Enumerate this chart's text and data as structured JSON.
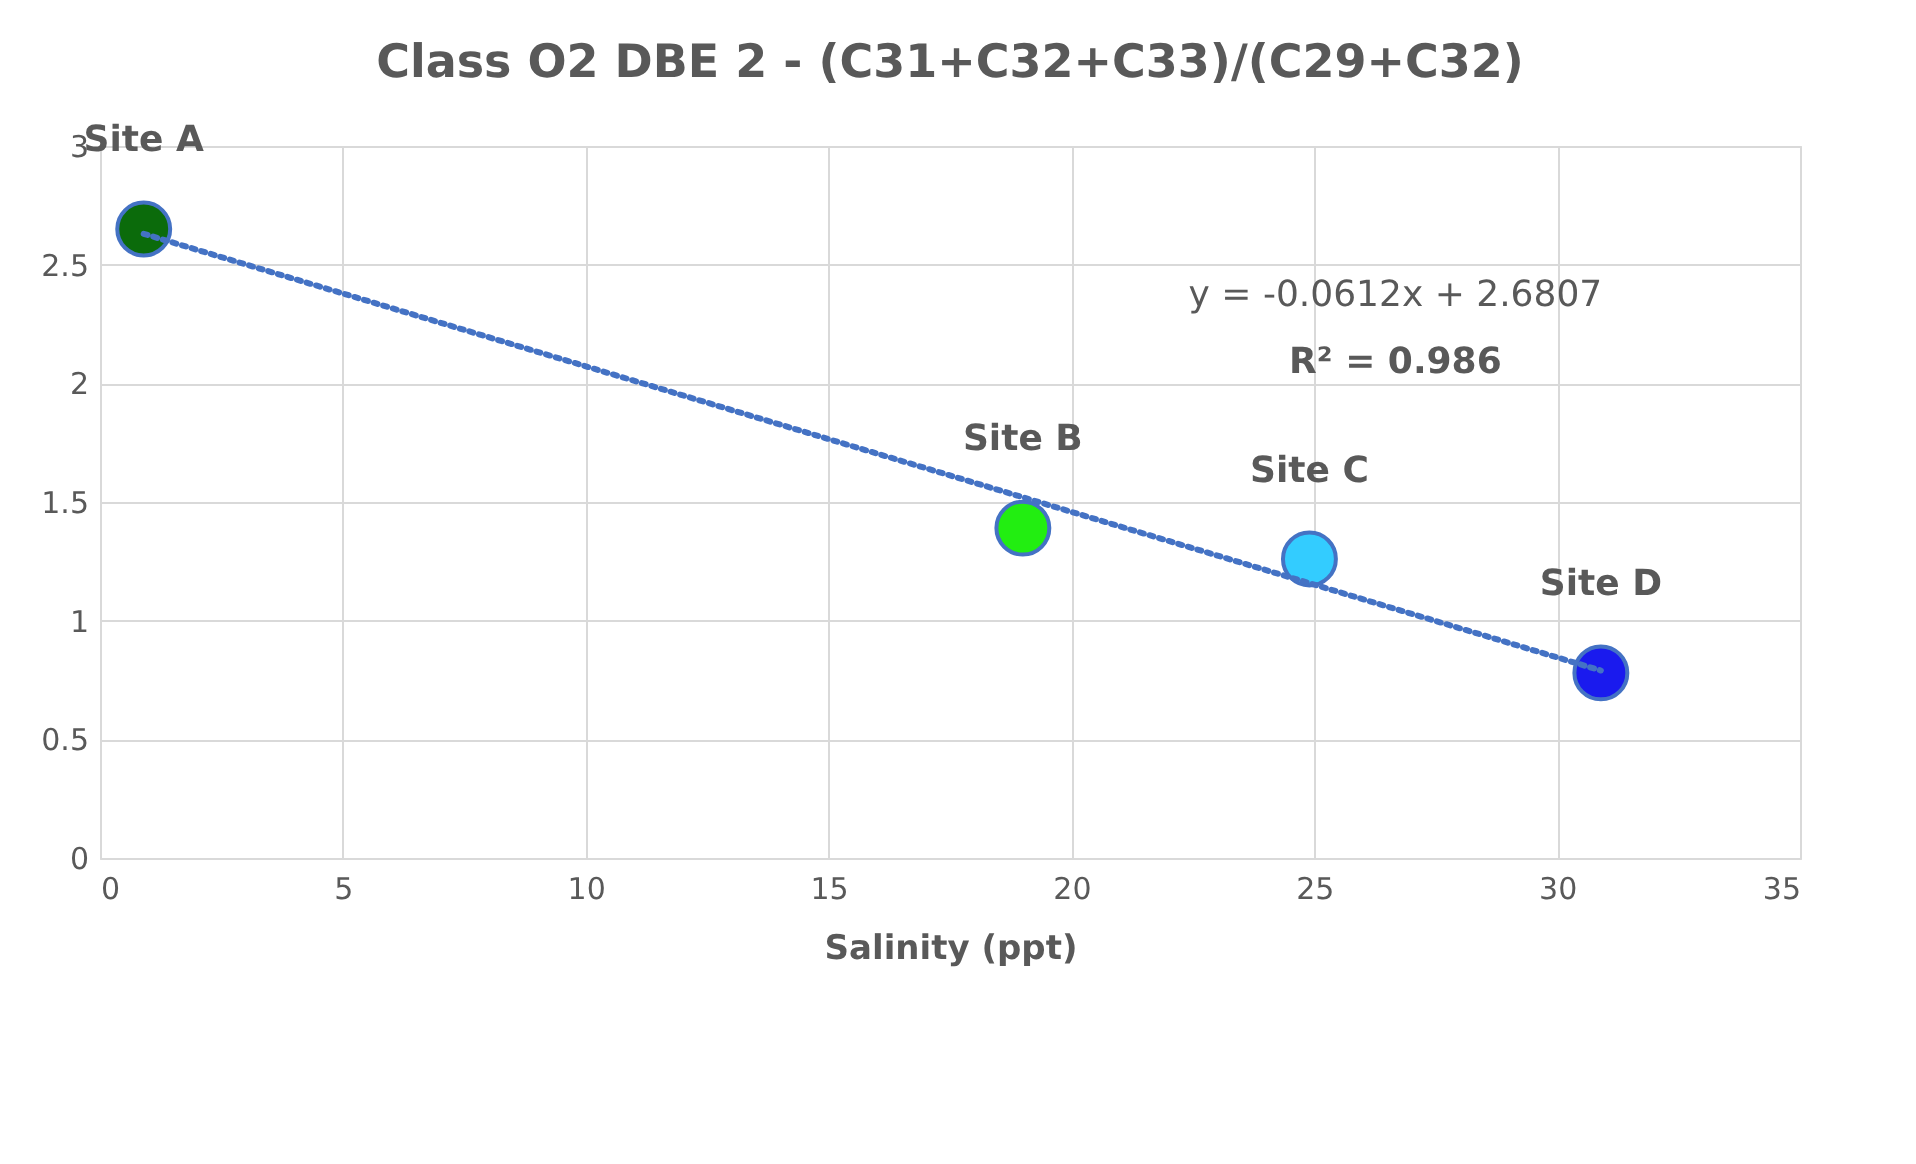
{
  "chart_data": {
    "type": "scatter",
    "title": "Class O2 DBE 2 - (C31+C32+C33)/(C29+C32)",
    "xlabel": "Salinity (ppt)",
    "xlim": [
      0,
      35
    ],
    "xticks": [
      0,
      5,
      10,
      15,
      20,
      25,
      30,
      35
    ],
    "ylim": [
      0,
      3
    ],
    "yticks": [
      0,
      0.5,
      1,
      1.5,
      2,
      2.5,
      3
    ],
    "grid": true,
    "legend": false,
    "series": [
      {
        "marker": "circle",
        "x": [
          0.9,
          19,
          24.9,
          30.9
        ],
        "values": [
          2.65,
          1.39,
          1.26,
          0.78
        ],
        "colors": [
          "#0b6b0b",
          "#22ee11",
          "#33ccff",
          "#1a1aee"
        ]
      },
      {
        "type": "line",
        "marker": "none",
        "line_style": "dotted",
        "color": "#4472c4",
        "x": [
          0.9,
          30.9
        ],
        "values": [
          2.63,
          0.79
        ]
      }
    ],
    "annotations": [
      {
        "text": "Site A",
        "x": 0.9,
        "y": 2.65
      },
      {
        "text": "Site B",
        "x": 19,
        "y": 1.39
      },
      {
        "text": "Site C",
        "x": 24.9,
        "y": 1.255
      },
      {
        "text": "Site D",
        "x": 30.9,
        "y": 0.78
      },
      "y = -0.0612x + 2.6807",
      "R² = 0.986"
    ]
  }
}
